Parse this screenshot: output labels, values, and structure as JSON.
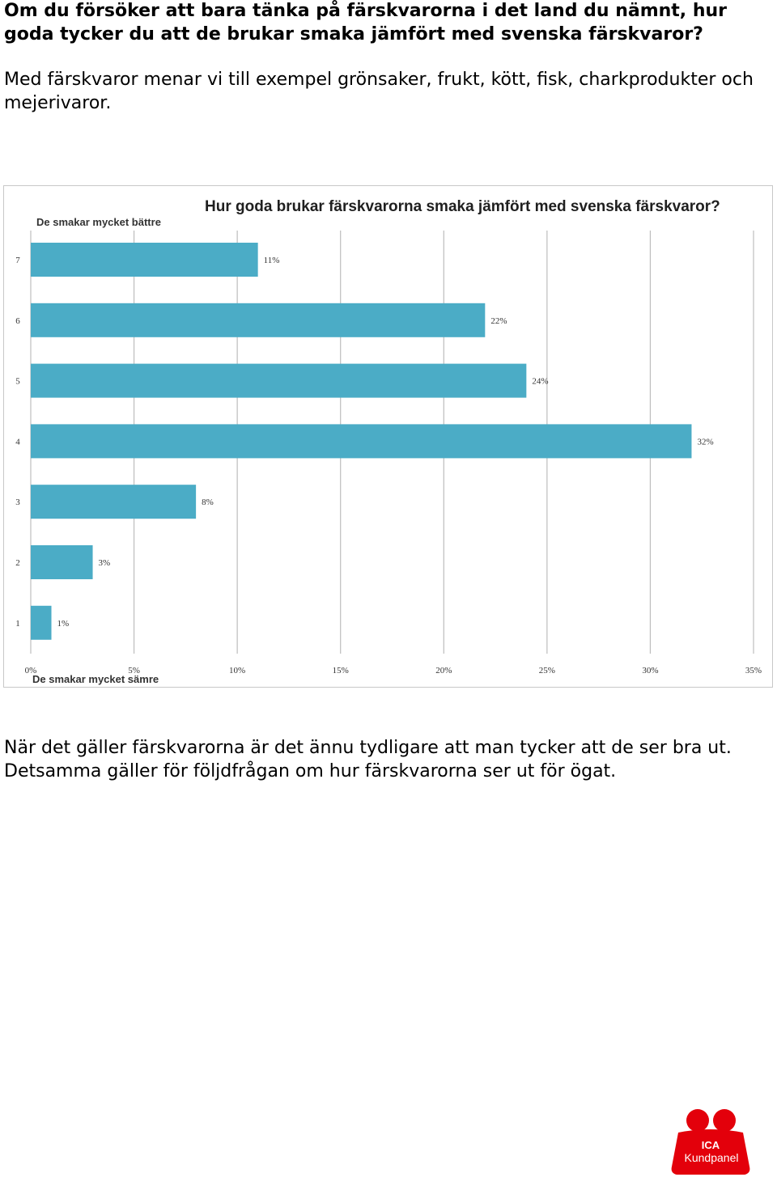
{
  "question": "Om du försöker att bara tänka på färskvarorna i det land du nämnt, hur goda tycker du att de brukar smaka jämfört med svenska färskvaror?",
  "intro": "Med färskvaror menar vi till exempel grönsaker, frukt, kött, fisk, charkprodukter och mejerivaror.",
  "chart_data": {
    "type": "bar",
    "orientation": "horizontal",
    "title": "Hur goda brukar färskvarorna smaka jämfört med svenska färskvaror?",
    "top_label": "De smakar mycket bättre",
    "bottom_label": "De smakar mycket sämre",
    "categories": [
      "7",
      "6",
      "5",
      "4",
      "3",
      "2",
      "1"
    ],
    "values": [
      11,
      22,
      24,
      32,
      8,
      3,
      1
    ],
    "value_labels": [
      "11%",
      "22%",
      "24%",
      "32%",
      "8%",
      "3%",
      "1%"
    ],
    "xlim": [
      0,
      35
    ],
    "x_ticks": [
      0,
      5,
      10,
      15,
      20,
      25,
      30,
      35
    ],
    "x_tick_labels": [
      "0%",
      "5%",
      "10%",
      "15%",
      "20%",
      "25%",
      "30%",
      "35%"
    ],
    "grid": true,
    "bar_color": "#4bacc6"
  },
  "conclusion": "När det gäller färskvarorna är det ännu tydligare att man tycker att de ser bra ut. Detsamma gäller för följdfrågan om hur färskvarorna ser ut för ögat.",
  "logo": {
    "line1": "ICA",
    "line2": "Kundpanel",
    "color": "#e3000b"
  }
}
